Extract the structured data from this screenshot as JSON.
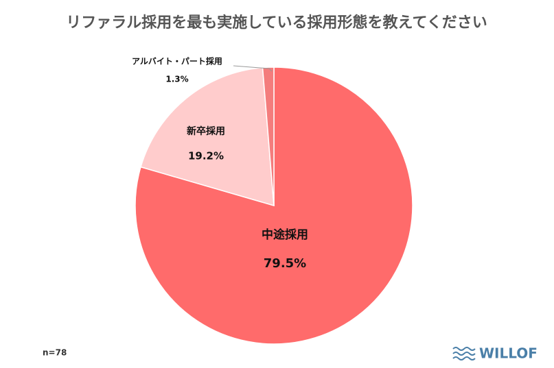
{
  "chart_data": {
    "type": "pie",
    "title": "リファラル採用を最も実施している採用形態を教えてください",
    "categories": [
      "中途採用",
      "新卒採用",
      "アルバイト・パート採用"
    ],
    "values": [
      79.5,
      19.2,
      1.3
    ],
    "value_labels": [
      "79.5%",
      "19.2%",
      "1.3%"
    ],
    "colors": [
      "#ff6b6b",
      "#ffcccc",
      "#f47c7c"
    ],
    "note": "n=78"
  },
  "logo": "WILLOF"
}
